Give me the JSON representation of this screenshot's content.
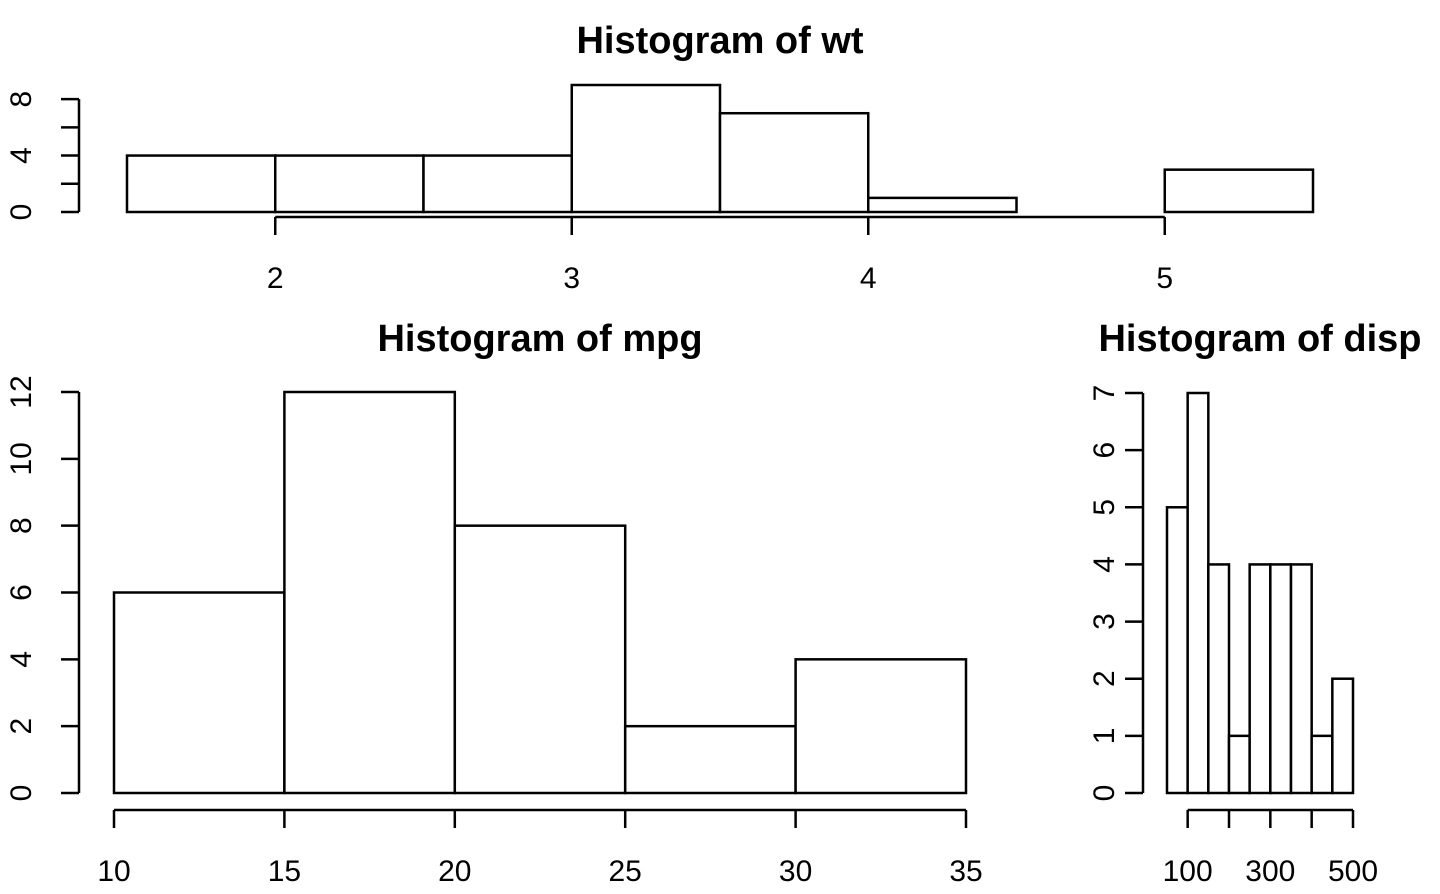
{
  "chart_data": [
    {
      "type": "bar",
      "title": "Histogram of wt",
      "xlabel": "",
      "ylabel": "",
      "breaks": [
        1.5,
        2.0,
        2.5,
        3.0,
        3.5,
        4.0,
        4.5,
        5.0,
        5.5
      ],
      "values": [
        4,
        4,
        4,
        9,
        7,
        1,
        0,
        3
      ],
      "x_ticks": [
        2,
        3,
        4,
        5
      ],
      "x_tick_labels": [
        "2",
        "3",
        "4",
        "5"
      ],
      "y_ticks": [
        0,
        2,
        4,
        6,
        8
      ],
      "y_tick_labels": [
        "0",
        "4",
        "8"
      ],
      "y_labeled_ticks": [
        0,
        4,
        8
      ],
      "ylim": [
        0,
        9
      ]
    },
    {
      "type": "bar",
      "title": "Histogram of mpg",
      "xlabel": "",
      "ylabel": "",
      "breaks": [
        10,
        15,
        20,
        25,
        30,
        35
      ],
      "values": [
        6,
        12,
        8,
        2,
        4
      ],
      "x_ticks": [
        10,
        15,
        20,
        25,
        30,
        35
      ],
      "x_tick_labels": [
        "10",
        "15",
        "20",
        "25",
        "30",
        "35"
      ],
      "y_ticks": [
        0,
        2,
        4,
        6,
        8,
        10,
        12
      ],
      "y_tick_labels": [
        "0",
        "2",
        "4",
        "6",
        "8",
        "10",
        "12"
      ],
      "y_labeled_ticks": [
        0,
        2,
        4,
        6,
        8,
        10,
        12
      ],
      "ylim": [
        0,
        12
      ]
    },
    {
      "type": "bar",
      "title": "Histogram of disp",
      "xlabel": "",
      "ylabel": "",
      "breaks": [
        50,
        100,
        150,
        200,
        250,
        300,
        350,
        400,
        450,
        500
      ],
      "values": [
        5,
        7,
        4,
        1,
        4,
        4,
        4,
        1,
        2
      ],
      "x_ticks": [
        100,
        200,
        300,
        400,
        500
      ],
      "x_tick_labels": [
        "100",
        "300",
        "500"
      ],
      "x_labeled_ticks": [
        100,
        300,
        500
      ],
      "y_ticks": [
        0,
        1,
        2,
        3,
        4,
        5,
        6,
        7
      ],
      "y_tick_labels": [
        "0",
        "1",
        "2",
        "3",
        "4",
        "5",
        "6",
        "7"
      ],
      "y_labeled_ticks": [
        0,
        1,
        2,
        3,
        4,
        5,
        6,
        7
      ],
      "ylim": [
        0,
        7
      ]
    }
  ]
}
